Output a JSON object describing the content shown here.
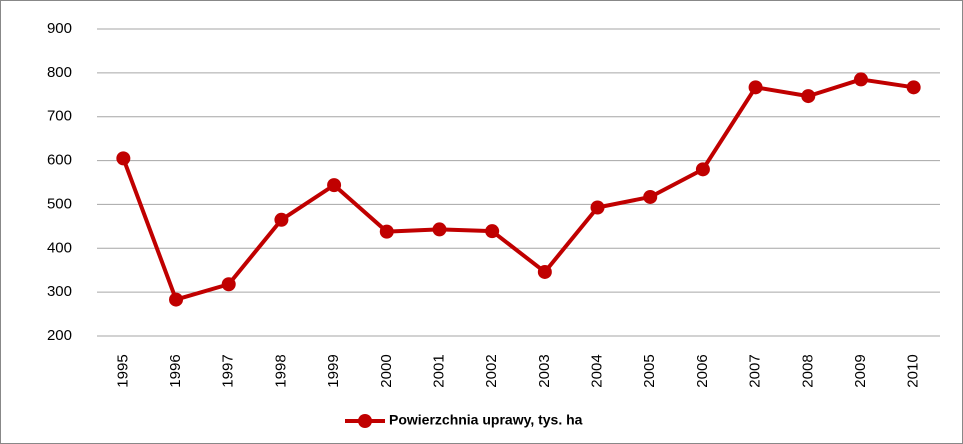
{
  "chart_data": {
    "type": "line",
    "categories": [
      "1995",
      "1996",
      "1997",
      "1998",
      "1999",
      "2000",
      "2001",
      "2002",
      "2003",
      "2004",
      "2005",
      "2006",
      "2007",
      "2008",
      "2009",
      "2010"
    ],
    "series": [
      {
        "name": "Powierzchnia uprawy, tys. ha",
        "color": "#c00000",
        "values": [
          605,
          283,
          318,
          465,
          544,
          438,
          443,
          439,
          346,
          493,
          517,
          580,
          767,
          747,
          785,
          767
        ]
      }
    ],
    "ylim": [
      200,
      900
    ],
    "yticks": [
      200,
      300,
      400,
      500,
      600,
      700,
      800,
      900
    ],
    "grid": true,
    "legend": "bottom"
  }
}
